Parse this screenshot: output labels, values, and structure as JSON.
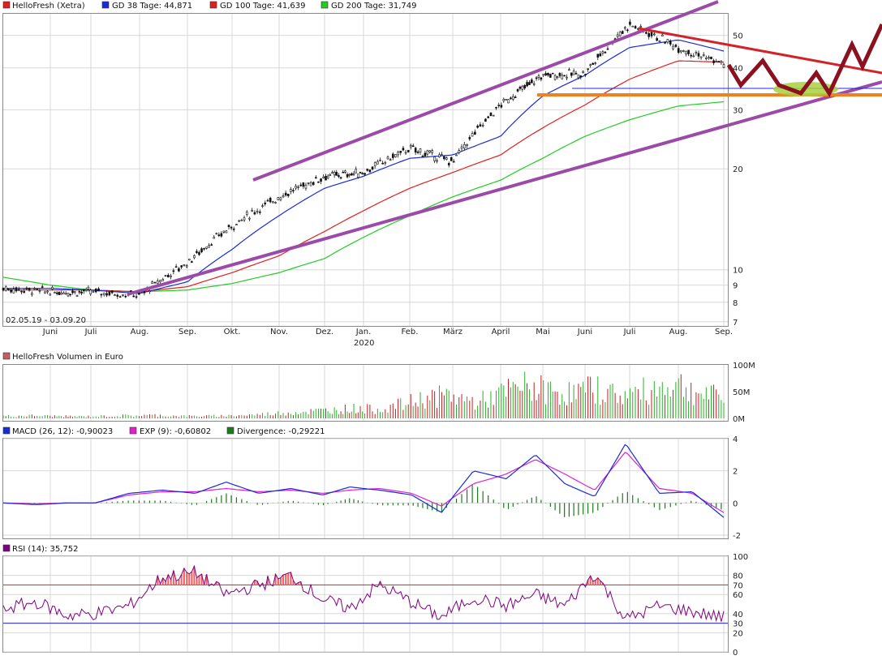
{
  "colors": {
    "candle": "#111111",
    "ma38": "#1a2cd8",
    "ma100": "#e0201e",
    "ma200": "#22cc22",
    "channel": "#9b4aa8",
    "resistance_red": "#d2232a",
    "support_orange": "#f08020",
    "support_blue": "#1a2cd8",
    "zigzag": "#8b1020",
    "ellipse": "#a8d040",
    "macd": "#1a2cd8",
    "signal": "#e020d0",
    "divergence": "#1c7a1c",
    "rsi": "#800080",
    "rsi_upper": "#e02020",
    "rsi_lower": "#2020e0",
    "vol_up": "#2ab02a",
    "vol_down": "#c02020",
    "grid": "#d8d8d8"
  },
  "legend_main": [
    {
      "swatch": "#e0201e",
      "label": "HelloFresh (Xetra)"
    },
    {
      "swatch": "#1a2cd8",
      "label": "GD 38 Tage: 44,871"
    },
    {
      "swatch": "#e0201e",
      "label": "GD 100 Tage: 41,639"
    },
    {
      "swatch": "#22cc22",
      "label": "GD 200 Tage: 31,749"
    }
  ],
  "date_range": "02.05.19 - 03.09.20",
  "month_labels": [
    "Juni",
    "Juli",
    "Aug.",
    "Sep.",
    "Okt.",
    "Nov.",
    "Dez.",
    "Jan.",
    "Feb.",
    "März",
    "April",
    "Mai",
    "Juni",
    "Juli",
    "Aug.",
    "Sep."
  ],
  "year_label": "2020",
  "legend_volume": {
    "swatch": "#c06060",
    "label": "HelloFresh Volumen in Euro"
  },
  "legend_macd": [
    {
      "swatch": "#1a2cd8",
      "label": "MACD (26, 12): -0,90023"
    },
    {
      "swatch": "#e020d0",
      "label": "EXP (9): -0,60802"
    },
    {
      "swatch": "#1c7a1c",
      "label": "Divergence: -0,29221"
    }
  ],
  "legend_rsi": {
    "swatch": "#800080",
    "label": "RSI (14): 35,752"
  },
  "chart_data": [
    {
      "type": "line",
      "title": "HelloFresh (Xetra)",
      "yscale": "log",
      "ylim": [
        6.8,
        58
      ],
      "y_ticks": [
        "50",
        "40",
        "30",
        "20",
        "10",
        "9",
        "8",
        "7"
      ],
      "x": [
        "Mai 19",
        "Juni",
        "Juli",
        "Aug.",
        "Sep.",
        "Okt.",
        "Nov.",
        "Dez.",
        "Jan. 2020",
        "Feb.",
        "März",
        "April",
        "Mai",
        "Juni",
        "Juli",
        "Aug.",
        "Sep."
      ],
      "series": [
        {
          "name": "HelloFresh (Xetra)",
          "values": [
            8.8,
            8.6,
            8.6,
            8.4,
            10.5,
            13.5,
            16.5,
            19.0,
            19.5,
            23.0,
            21.0,
            31.0,
            38.0,
            38.5,
            54.0,
            46.0,
            41.0
          ]
        },
        {
          "name": "GD 38 Tage",
          "values": [
            8.8,
            8.8,
            8.7,
            8.5,
            9.2,
            11.5,
            14.5,
            17.5,
            19.0,
            21.5,
            22.0,
            25.0,
            33.0,
            38.0,
            46.0,
            48.5,
            44.9
          ]
        },
        {
          "name": "GD 100 Tage",
          "values": [
            8.7,
            8.7,
            8.7,
            8.6,
            8.9,
            9.8,
            11.0,
            13.0,
            15.0,
            17.5,
            19.5,
            22.0,
            26.5,
            31.0,
            37.0,
            42.0,
            41.6
          ]
        },
        {
          "name": "GD 200 Tage",
          "values": [
            9.5,
            9.0,
            8.7,
            8.6,
            8.7,
            9.1,
            9.8,
            10.8,
            12.5,
            14.5,
            16.5,
            18.5,
            21.5,
            25.0,
            28.0,
            30.8,
            31.7
          ]
        }
      ],
      "legend": "top-left",
      "grid": true
    },
    {
      "type": "bar",
      "title": "HelloFresh Volumen in Euro",
      "ylim": [
        0,
        100
      ],
      "y_ticks": [
        "100M",
        "50M",
        "0M"
      ],
      "series": [
        {
          "name": "HelloFresh Volumen in Euro",
          "values": [
            5,
            6,
            5,
            4,
            5,
            6,
            7,
            5,
            5,
            6,
            8,
            12,
            15,
            18,
            22,
            20,
            30,
            45,
            50,
            35,
            55,
            70,
            60,
            55,
            65,
            50,
            60,
            80,
            55,
            45
          ]
        }
      ]
    },
    {
      "type": "line",
      "title": "MACD",
      "ylim": [
        -2,
        4
      ],
      "y_ticks": [
        "4",
        "2",
        "0",
        "-2"
      ],
      "series": [
        {
          "name": "MACD (26, 12)",
          "values": [
            0.0,
            -0.1,
            0.0,
            0.0,
            0.6,
            0.8,
            0.6,
            1.3,
            0.6,
            0.9,
            0.5,
            1.0,
            0.8,
            0.5,
            -0.6,
            2.0,
            1.5,
            3.0,
            1.2,
            0.4,
            3.7,
            0.6,
            0.7,
            -0.9
          ]
        },
        {
          "name": "EXP (9)",
          "values": [
            0.0,
            -0.05,
            0.0,
            0.0,
            0.5,
            0.7,
            0.7,
            0.9,
            0.7,
            0.8,
            0.6,
            0.8,
            0.9,
            0.6,
            -0.2,
            1.2,
            1.8,
            2.7,
            1.8,
            0.8,
            3.2,
            0.9,
            0.6,
            -0.6
          ]
        }
      ]
    },
    {
      "type": "line",
      "title": "RSI (14)",
      "ylim": [
        0,
        100
      ],
      "y_ticks": [
        "100",
        "80",
        "70",
        "60",
        "40",
        "30",
        "20",
        "0"
      ],
      "series": [
        {
          "name": "RSI (14)",
          "values": [
            45,
            52,
            38,
            40,
            48,
            78,
            83,
            60,
            70,
            80,
            55,
            45,
            70,
            52,
            36,
            57,
            48,
            60,
            48,
            82,
            34,
            48,
            42,
            36
          ]
        }
      ]
    }
  ]
}
